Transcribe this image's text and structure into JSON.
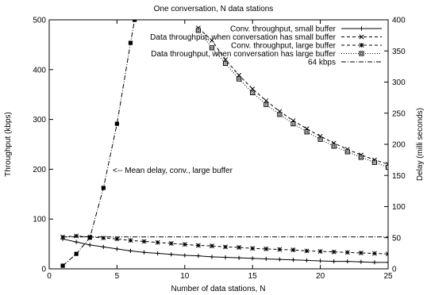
{
  "chart_data": {
    "type": "line",
    "title": "One conversation, N data stations",
    "xlabel": "Number of data stations, N",
    "ylabel": "Throughput (kbps)",
    "y2label": "Delay (milli seconds)",
    "xlim": [
      0,
      25
    ],
    "ylim": [
      0,
      500
    ],
    "y2lim": [
      0,
      400
    ],
    "xticks": [
      0,
      5,
      10,
      15,
      20,
      25
    ],
    "yticks": [
      0,
      100,
      200,
      300,
      400,
      500
    ],
    "y2ticks": [
      0,
      50,
      100,
      150,
      200,
      250,
      300,
      350,
      400
    ],
    "grid": false,
    "legend_position": "top-right",
    "annotation": "<-- Mean delay, conv., large buffer",
    "series": [
      {
        "name": "Conv. throughput, small buffer",
        "axis": "left",
        "style": "solid",
        "marker": "plus",
        "x": [
          1,
          2,
          3,
          4,
          5,
          6,
          7,
          8,
          9,
          10,
          11,
          12,
          13,
          14,
          15,
          16,
          17,
          18,
          19,
          20,
          21,
          22,
          23,
          24,
          25
        ],
        "y": [
          60,
          54,
          48,
          44,
          40,
          36,
          33,
          31,
          29,
          27,
          26,
          24,
          23,
          22,
          21,
          20,
          19,
          18,
          17,
          16,
          15,
          15,
          14,
          13,
          13
        ]
      },
      {
        "name": "Data throughput, when conversation has small buffer",
        "axis": "right",
        "style": "dashed",
        "marker": "x",
        "x": [
          11,
          12,
          13,
          14,
          15,
          16,
          17,
          18,
          19,
          20,
          21,
          22,
          23,
          24,
          25
        ],
        "y": [
          387,
          367,
          336,
          311,
          289,
          270,
          253,
          238,
          225,
          213,
          202,
          192,
          183,
          175,
          168
        ]
      },
      {
        "name": "Conv. throughput, large buffer",
        "axis": "left",
        "style": "dashed",
        "marker": "star",
        "x": [
          1,
          2,
          3,
          4,
          5,
          6,
          7,
          8,
          9,
          10,
          11,
          12,
          13,
          14,
          15,
          16,
          17,
          18,
          19,
          20,
          21,
          22,
          23,
          24,
          25
        ],
        "y": [
          64,
          66,
          64,
          62,
          60,
          57,
          55,
          53,
          51,
          49,
          47,
          46,
          44,
          43,
          41,
          40,
          39,
          38,
          36,
          35,
          34,
          33,
          32,
          31,
          30
        ]
      },
      {
        "name": "Data throughput, when conversation has large buffer",
        "axis": "right",
        "style": "dotted",
        "marker": "square-open",
        "x": [
          11,
          12,
          13,
          14,
          15,
          16,
          17,
          18,
          19,
          20,
          21,
          22,
          23,
          24,
          25
        ],
        "y": [
          383,
          355,
          330,
          305,
          283,
          264,
          248,
          233,
          220,
          208,
          197,
          188,
          179,
          171,
          163
        ]
      },
      {
        "name": "64 kbps",
        "axis": "left",
        "style": "dashdot",
        "marker": "none",
        "x": [
          1,
          25
        ],
        "y": [
          64,
          64
        ]
      },
      {
        "name": "",
        "axis": "right",
        "style": "dashdot",
        "marker": "square-filled",
        "x": [
          1,
          2,
          3,
          4,
          5,
          6,
          6.3
        ],
        "y": [
          5,
          24,
          50,
          130,
          233,
          363,
          400
        ]
      }
    ]
  }
}
